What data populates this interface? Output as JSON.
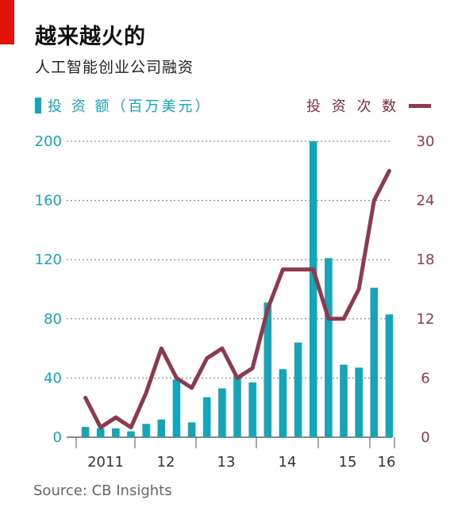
{
  "header": {
    "title": "越来越火的",
    "subtitle": "人工智能创业公司融资"
  },
  "legend": {
    "left_label": "投 资 额（百万美元）",
    "right_label": "投 资 次 数"
  },
  "source": "Source: CB Insights",
  "colors": {
    "accent": "#e3120b",
    "bar": "#14a5b8",
    "line": "#8c3a4d"
  },
  "chart_data": {
    "type": "bar",
    "title": "越来越火的",
    "subtitle": "人工智能创业公司融资",
    "x_labels": [
      "2011",
      "12",
      "13",
      "14",
      "15",
      "16"
    ],
    "bar_series": {
      "name": "投资额（百万美元）",
      "axis": "left",
      "ylim": [
        0,
        200
      ],
      "yticks": [
        0,
        40,
        80,
        120,
        160,
        200
      ],
      "values": [
        7,
        6,
        6,
        4,
        9,
        12,
        39,
        10,
        27,
        33,
        42,
        37,
        91,
        46,
        64,
        200,
        121,
        49,
        47,
        101,
        83
      ]
    },
    "line_series": {
      "name": "投资次数",
      "type": "line",
      "axis": "right",
      "ylim": [
        0,
        30
      ],
      "yticks": [
        0,
        6,
        12,
        18,
        24,
        30
      ],
      "values": [
        4,
        1,
        2,
        1,
        4.5,
        9,
        6,
        5,
        8,
        9,
        6,
        7,
        13,
        17,
        17,
        17,
        12,
        12,
        15,
        24,
        27
      ]
    },
    "grid": "horizontal dotted"
  }
}
